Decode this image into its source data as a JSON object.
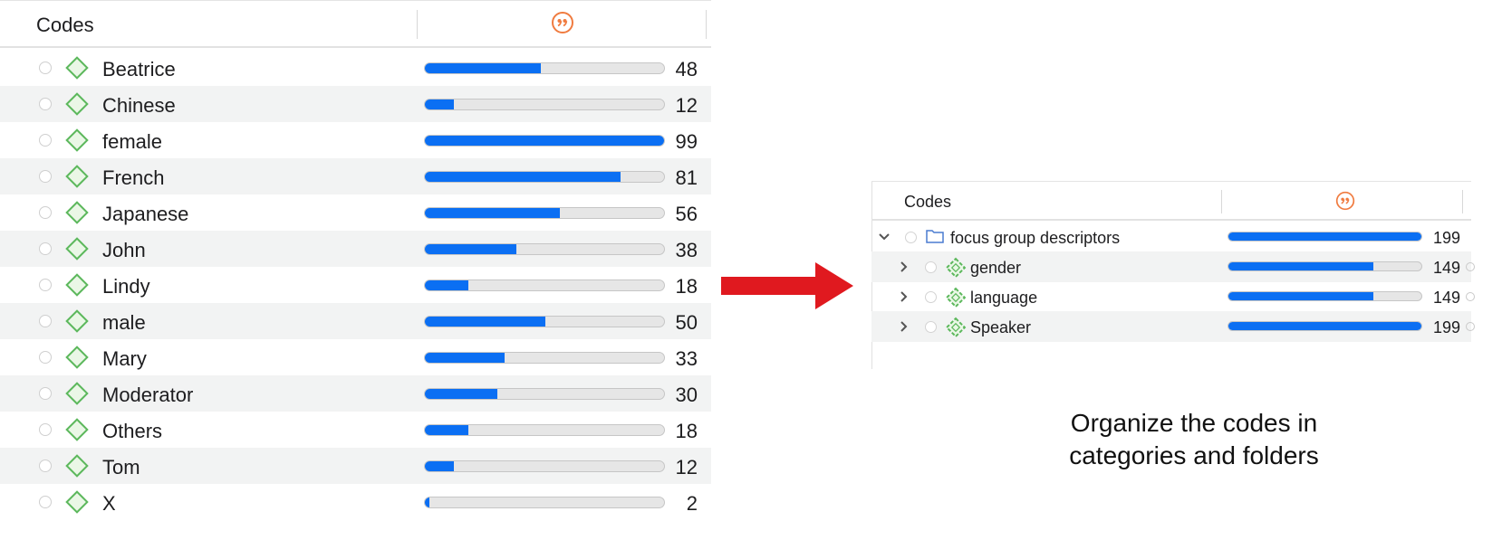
{
  "left_table": {
    "header": {
      "title": "Codes",
      "quote_icon": "quotation-icon"
    },
    "rows": [
      {
        "label": "Beatrice",
        "count": "48",
        "fill": 0.485
      },
      {
        "label": "Chinese",
        "count": "12",
        "fill": 0.121
      },
      {
        "label": "female",
        "count": "99",
        "fill": 1.0
      },
      {
        "label": "French",
        "count": "81",
        "fill": 0.818
      },
      {
        "label": "Japanese",
        "count": "56",
        "fill": 0.566
      },
      {
        "label": "John",
        "count": "38",
        "fill": 0.384
      },
      {
        "label": "Lindy",
        "count": "18",
        "fill": 0.182
      },
      {
        "label": "male",
        "count": "50",
        "fill": 0.505
      },
      {
        "label": "Mary",
        "count": "33",
        "fill": 0.333
      },
      {
        "label": "Moderator",
        "count": "30",
        "fill": 0.303
      },
      {
        "label": "Others",
        "count": "18",
        "fill": 0.182
      },
      {
        "label": "Tom",
        "count": "12",
        "fill": 0.121
      },
      {
        "label": "X",
        "count": "2",
        "fill": 0.02
      }
    ]
  },
  "right_table": {
    "header": {
      "title": "Codes",
      "quote_icon": "quotation-icon"
    },
    "rows": [
      {
        "label": "focus group descriptors",
        "count": "199",
        "fill": 1.0,
        "kind": "folder",
        "expanded": true
      },
      {
        "label": "gender",
        "count": "149",
        "fill": 0.749,
        "kind": "category",
        "expanded": false
      },
      {
        "label": "language",
        "count": "149",
        "fill": 0.749,
        "kind": "category",
        "expanded": false
      },
      {
        "label": "Speaker",
        "count": "199",
        "fill": 1.0,
        "kind": "category",
        "expanded": false
      }
    ]
  },
  "caption": {
    "line1": "Organize the codes in",
    "line2": "categories and folders"
  },
  "colors": {
    "bar_fill": "#0b6ff3",
    "code_green": "#5cb85c",
    "quote_orange": "#f07b3f",
    "arrow_red": "#e0191f",
    "folder_blue": "#4a7bd0"
  }
}
